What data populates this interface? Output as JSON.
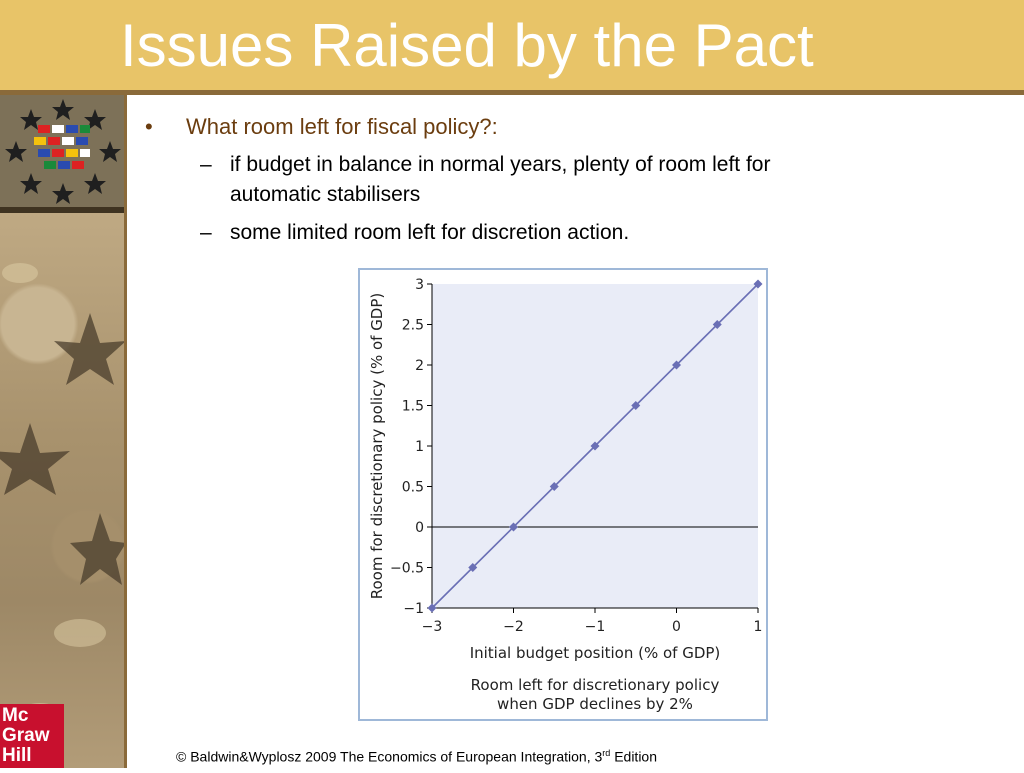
{
  "slide": {
    "title": "Issues Raised by the Pact",
    "bullet": "What room left for fiscal policy?:",
    "subpoints": [
      "if budget in balance in normal years, plenty of room left for",
      "automatic stabilisers",
      "some limited room left for discretion action."
    ],
    "logo": [
      "Mc",
      "Graw",
      "Hill"
    ],
    "footer_main": "© Baldwin&Wyplosz 2009 The Economics of European Integration, 3",
    "footer_sup": "rd",
    "footer_end": " Edition"
  },
  "colors": {
    "title_bg": "#e8c468",
    "series": "#6a6fb5",
    "frame": "#9fb8d8",
    "plot_bg": "#e9ecf7"
  },
  "chart_data": {
    "type": "line",
    "xlabel": "Initial budget position (% of GDP)",
    "ylabel": "Room for discretionary policy (% of GDP)",
    "caption_line1": "Room left for discretionary policy",
    "caption_line2": "when GDP declines by 2%",
    "xlim": [
      -3,
      1
    ],
    "ylim": [
      -1,
      3
    ],
    "x_ticks": [
      "−3",
      "−2",
      "−1",
      "0",
      "1"
    ],
    "y_ticks": [
      "−1",
      "−0.5",
      "0",
      "0.5",
      "1",
      "1.5",
      "2",
      "2.5",
      "3"
    ],
    "x": [
      -3,
      -2.5,
      -2,
      -1.5,
      -1,
      -0.5,
      0,
      0.5,
      1
    ],
    "y": [
      -1,
      -0.5,
      0,
      0.5,
      1,
      1.5,
      2,
      2.5,
      3
    ],
    "reference_line_y": 0,
    "grid": false
  }
}
